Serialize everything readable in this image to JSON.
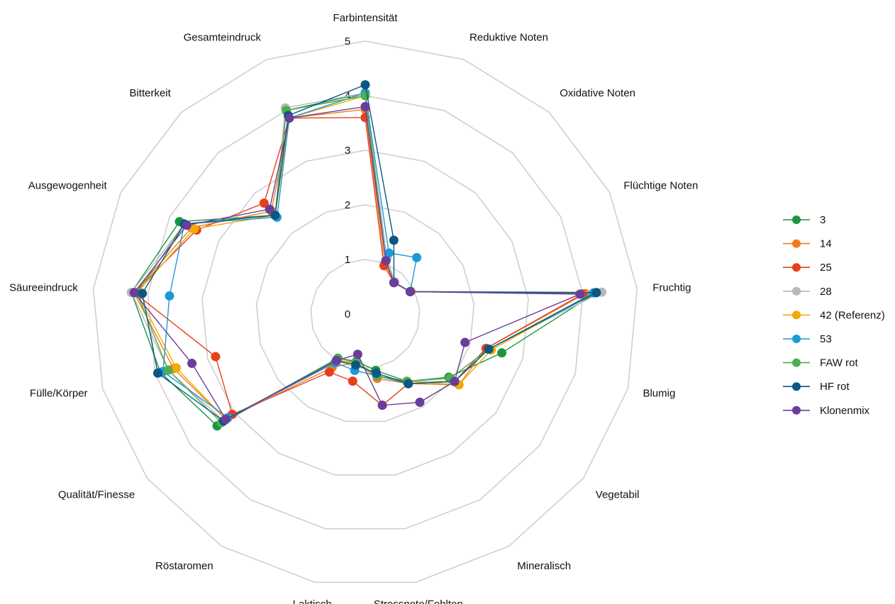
{
  "chart_data": {
    "type": "radar",
    "title": "",
    "scale": {
      "min": 0,
      "max": 5,
      "ticks": [
        0,
        1,
        2,
        3,
        4,
        5
      ]
    },
    "grid": true,
    "legend_position": "right",
    "axes": [
      "Farbintensität",
      "Reduktive Noten",
      "Oxidative Noten",
      "Flüchtige Noten",
      "Fruchtig",
      "Blumig",
      "Vegetabil",
      "Mineralisch",
      "Stressnote/Fehlton",
      "Laktisch",
      "Röstaromen",
      "Qualität/Finesse",
      "Fülle/Körper",
      "Säureeindruck",
      "Ausgewogenheit",
      "Bitterkeit",
      "Gesamteindruck"
    ],
    "series": [
      {
        "name": "3",
        "color": "#1a9641",
        "values": [
          4.05,
          1.05,
          0.78,
          0.92,
          4.25,
          2.6,
          1.92,
          1.45,
          1.05,
          0.88,
          0.95,
          3.4,
          3.9,
          4.3,
          3.8,
          2.45,
          4.0
        ]
      },
      {
        "name": "14",
        "color": "#f07d1a",
        "values": [
          3.75,
          1.0,
          0.78,
          0.93,
          4.05,
          2.3,
          2.15,
          1.5,
          1.2,
          0.9,
          1.15,
          3.2,
          3.65,
          4.25,
          3.55,
          2.55,
          3.85
        ]
      },
      {
        "name": "25",
        "color": "#e8401c",
        "values": [
          3.6,
          0.95,
          0.78,
          0.93,
          4.0,
          2.3,
          2.05,
          1.5,
          1.7,
          1.25,
          1.25,
          3.05,
          2.85,
          4.25,
          3.45,
          2.75,
          3.85
        ]
      },
      {
        "name": "28",
        "color": "#b8b8b8",
        "values": [
          4.05,
          1.1,
          0.8,
          0.92,
          4.35,
          2.35,
          2.05,
          1.45,
          1.15,
          0.9,
          1.05,
          3.25,
          3.75,
          4.3,
          3.7,
          2.45,
          4.05
        ]
      },
      {
        "name": "42 (Referenz)",
        "color": "#f2a900",
        "values": [
          4.0,
          1.05,
          0.78,
          0.92,
          4.2,
          2.4,
          2.15,
          1.45,
          1.15,
          0.9,
          1.0,
          3.2,
          3.6,
          4.2,
          3.5,
          2.45,
          3.85
        ]
      },
      {
        "name": "53",
        "color": "#1d9ad6",
        "values": [
          4.05,
          1.2,
          1.4,
          0.92,
          4.2,
          2.35,
          2.05,
          1.5,
          1.15,
          1.05,
          1.05,
          3.15,
          3.85,
          3.6,
          3.7,
          2.4,
          3.85
        ]
      },
      {
        "name": "FAW rot",
        "color": "#4cae4c",
        "values": [
          4.0,
          1.05,
          0.78,
          0.92,
          4.25,
          2.35,
          1.95,
          1.45,
          1.15,
          0.9,
          0.95,
          3.3,
          3.75,
          4.2,
          3.7,
          2.45,
          4.0
        ]
      },
      {
        "name": "HF rot",
        "color": "#0b5783",
        "values": [
          4.2,
          1.45,
          0.78,
          0.92,
          4.25,
          2.35,
          2.05,
          1.5,
          1.1,
          0.95,
          1.0,
          3.25,
          3.95,
          4.1,
          3.7,
          2.45,
          3.9
        ]
      },
      {
        "name": "Klonenmix",
        "color": "#6a3d9a",
        "values": [
          3.8,
          1.05,
          0.78,
          0.92,
          3.95,
          1.9,
          2.05,
          1.9,
          1.7,
          0.75,
          1.0,
          3.2,
          3.3,
          4.25,
          3.65,
          2.6,
          3.85
        ]
      }
    ]
  }
}
